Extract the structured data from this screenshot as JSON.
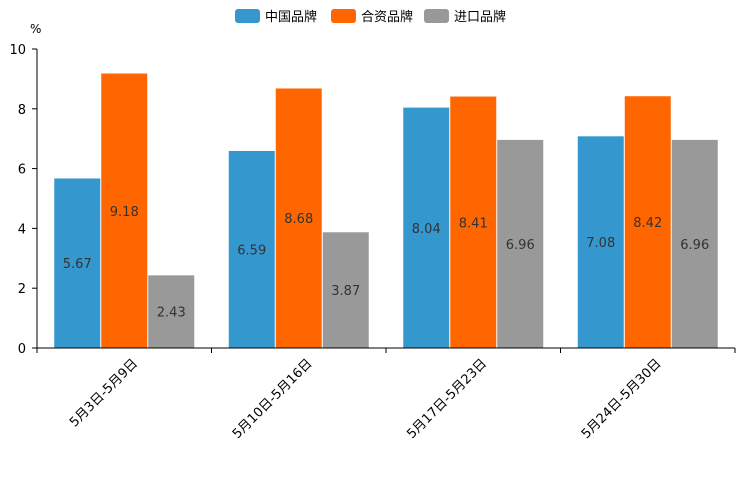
{
  "chart_data": {
    "type": "bar",
    "title": "",
    "unit": "%",
    "categories": [
      "5月3日-5月9日",
      "5月10日-5月16日",
      "5月17日-5月23日",
      "5月24日-5月30日"
    ],
    "series": [
      {
        "name": "中国品牌",
        "color": "#3498cf",
        "values": [
          5.67,
          6.59,
          8.04,
          7.08
        ]
      },
      {
        "name": "合资品牌",
        "color": "#ff6600",
        "values": [
          9.18,
          8.68,
          8.41,
          8.42
        ]
      },
      {
        "name": "进口品牌",
        "color": "#999999",
        "values": [
          2.43,
          3.87,
          6.96,
          6.96
        ]
      }
    ],
    "yticks": [
      0,
      2,
      4,
      6,
      8,
      10
    ],
    "ylim": [
      0,
      10
    ],
    "xlabel": "",
    "ylabel": "%",
    "legend_position": "top-center",
    "grid": false
  }
}
